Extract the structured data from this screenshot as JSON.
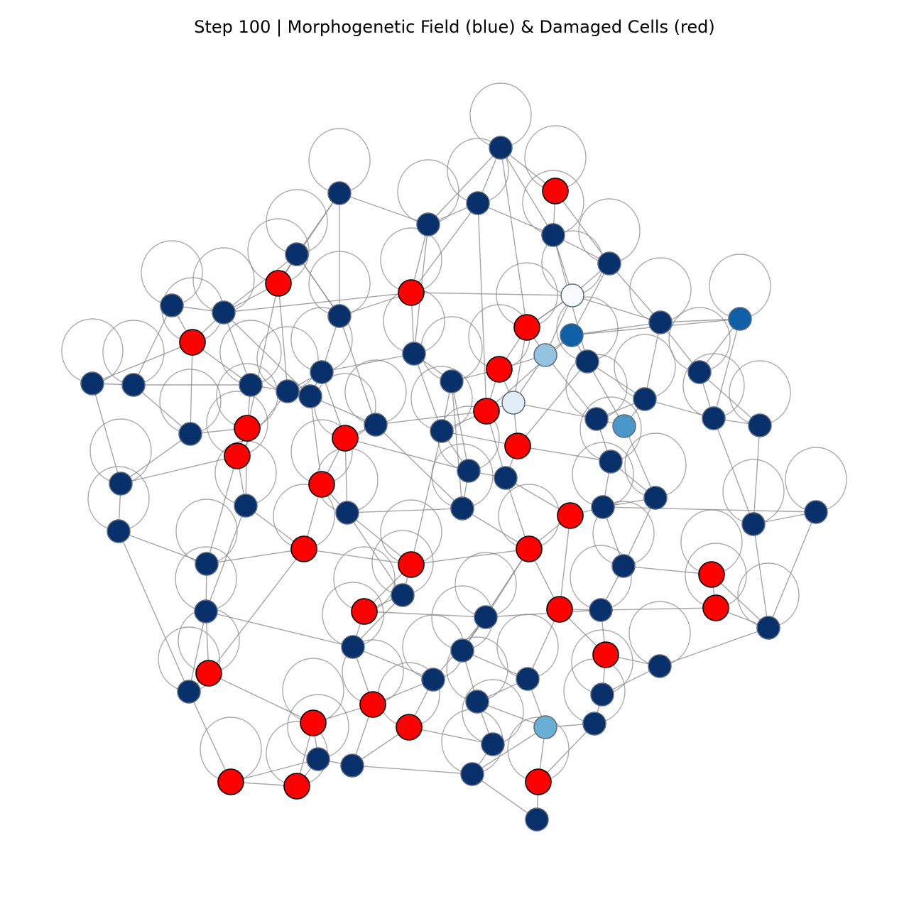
{
  "title": "Step 100 | Morphogenetic Field (blue) & Damaged Cells (red)",
  "colors": {
    "damaged": "#ff0000",
    "field_high": "#08306b",
    "field_mid_dark": "#1060a8",
    "field_mid": "#4a98c9",
    "field_mid_light": "#6aaed6",
    "field_light": "#94c4df",
    "field_pale": "#e3eef9",
    "field_min": "#f7fbff",
    "edge": "#888888"
  },
  "legend_note": [
    "Morphogenetic Field (blue)",
    "Damaged Cells (red)"
  ]
}
